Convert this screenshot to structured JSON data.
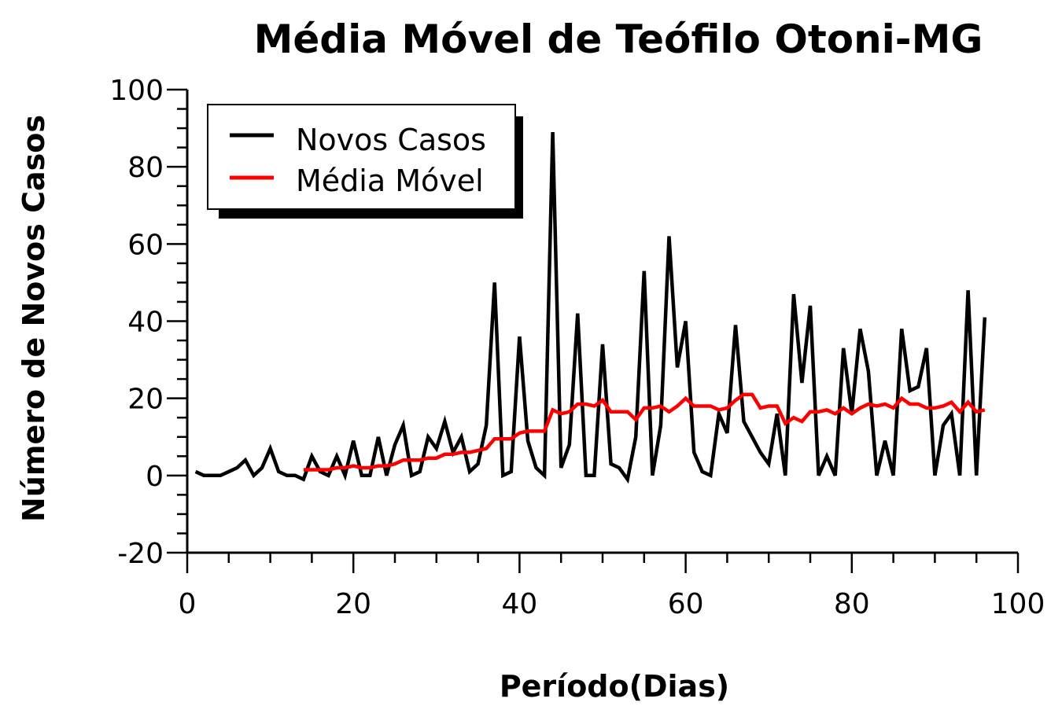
{
  "chart_data": {
    "type": "line",
    "title": "Média Móvel de Teófilo Otoni-MG",
    "xlabel": "Período(Dias)",
    "ylabel": "Número de Novos Casos",
    "xlim": [
      0,
      100
    ],
    "ylim": [
      -20,
      100
    ],
    "xticks": [
      0,
      20,
      40,
      60,
      80,
      100
    ],
    "yticks": [
      -20,
      0,
      20,
      40,
      60,
      80,
      100
    ],
    "x_minor_step": 5,
    "y_minor_step": 5,
    "grid": false,
    "legend_position": "top-left",
    "series": [
      {
        "name": "Novos Casos",
        "color": "#000000",
        "points": [
          [
            1,
            1
          ],
          [
            2,
            0
          ],
          [
            3,
            0
          ],
          [
            4,
            0
          ],
          [
            5,
            1
          ],
          [
            6,
            2
          ],
          [
            7,
            4
          ],
          [
            8,
            0
          ],
          [
            9,
            2
          ],
          [
            10,
            7
          ],
          [
            11,
            1
          ],
          [
            12,
            0
          ],
          [
            13,
            0
          ],
          [
            14,
            -1
          ],
          [
            15,
            5
          ],
          [
            16,
            1
          ],
          [
            17,
            0
          ],
          [
            18,
            5
          ],
          [
            19,
            0
          ],
          [
            20,
            9
          ],
          [
            21,
            0
          ],
          [
            22,
            0
          ],
          [
            23,
            10
          ],
          [
            24,
            0
          ],
          [
            25,
            8
          ],
          [
            26,
            13
          ],
          [
            27,
            0
          ],
          [
            28,
            1
          ],
          [
            29,
            10
          ],
          [
            30,
            7
          ],
          [
            31,
            14
          ],
          [
            32,
            6
          ],
          [
            33,
            10
          ],
          [
            34,
            1
          ],
          [
            35,
            3
          ],
          [
            36,
            13
          ],
          [
            37,
            50
          ],
          [
            38,
            0
          ],
          [
            39,
            1
          ],
          [
            40,
            36
          ],
          [
            41,
            9
          ],
          [
            42,
            2
          ],
          [
            43,
            0
          ],
          [
            44,
            89
          ],
          [
            45,
            2
          ],
          [
            46,
            8
          ],
          [
            47,
            42
          ],
          [
            48,
            0
          ],
          [
            49,
            0
          ],
          [
            50,
            34
          ],
          [
            51,
            3
          ],
          [
            52,
            2
          ],
          [
            53,
            -1
          ],
          [
            54,
            10
          ],
          [
            55,
            53
          ],
          [
            56,
            0
          ],
          [
            57,
            13
          ],
          [
            58,
            62
          ],
          [
            59,
            28
          ],
          [
            60,
            40
          ],
          [
            61,
            6
          ],
          [
            62,
            1
          ],
          [
            63,
            0
          ],
          [
            64,
            16
          ],
          [
            65,
            11
          ],
          [
            66,
            39
          ],
          [
            67,
            14
          ],
          [
            68,
            10
          ],
          [
            69,
            6
          ],
          [
            70,
            3
          ],
          [
            71,
            16
          ],
          [
            72,
            0
          ],
          [
            73,
            47
          ],
          [
            74,
            24
          ],
          [
            75,
            44
          ],
          [
            76,
            0
          ],
          [
            77,
            5
          ],
          [
            78,
            0
          ],
          [
            79,
            33
          ],
          [
            80,
            16
          ],
          [
            81,
            38
          ],
          [
            82,
            27
          ],
          [
            83,
            0
          ],
          [
            84,
            9
          ],
          [
            85,
            0
          ],
          [
            86,
            38
          ],
          [
            87,
            22
          ],
          [
            88,
            23
          ],
          [
            89,
            33
          ],
          [
            90,
            0
          ],
          [
            91,
            13
          ],
          [
            92,
            16
          ],
          [
            93,
            0
          ],
          [
            94,
            48
          ],
          [
            95,
            0
          ],
          [
            96,
            41
          ]
        ]
      },
      {
        "name": "Média Móvel",
        "color": "#ff0000",
        "points": [
          [
            14,
            1.5
          ],
          [
            15,
            1.5
          ],
          [
            16,
            1.5
          ],
          [
            17,
            1.5
          ],
          [
            18,
            2
          ],
          [
            19,
            2
          ],
          [
            20,
            2.5
          ],
          [
            21,
            2
          ],
          [
            22,
            2
          ],
          [
            23,
            2.5
          ],
          [
            24,
            2.5
          ],
          [
            25,
            3
          ],
          [
            26,
            4
          ],
          [
            27,
            4
          ],
          [
            28,
            4
          ],
          [
            29,
            4.5
          ],
          [
            30,
            4.5
          ],
          [
            31,
            5.5
          ],
          [
            32,
            5.5
          ],
          [
            33,
            6
          ],
          [
            34,
            6
          ],
          [
            35,
            6.5
          ],
          [
            36,
            7
          ],
          [
            37,
            9.5
          ],
          [
            38,
            9.5
          ],
          [
            39,
            9.5
          ],
          [
            40,
            11
          ],
          [
            41,
            11.5
          ],
          [
            42,
            11.5
          ],
          [
            43,
            11.5
          ],
          [
            44,
            17
          ],
          [
            45,
            16
          ],
          [
            46,
            16.5
          ],
          [
            47,
            18.5
          ],
          [
            48,
            18.5
          ],
          [
            49,
            18
          ],
          [
            50,
            19.5
          ],
          [
            51,
            16.5
          ],
          [
            52,
            16.5
          ],
          [
            53,
            16.5
          ],
          [
            54,
            14.5
          ],
          [
            55,
            17.5
          ],
          [
            56,
            17.5
          ],
          [
            57,
            18
          ],
          [
            58,
            16.5
          ],
          [
            59,
            18
          ],
          [
            60,
            20
          ],
          [
            61,
            18
          ],
          [
            62,
            18
          ],
          [
            63,
            18
          ],
          [
            64,
            17
          ],
          [
            65,
            17.5
          ],
          [
            66,
            19.5
          ],
          [
            67,
            21
          ],
          [
            68,
            21
          ],
          [
            69,
            17.5
          ],
          [
            70,
            18
          ],
          [
            71,
            18
          ],
          [
            72,
            13.5
          ],
          [
            73,
            15
          ],
          [
            74,
            14
          ],
          [
            75,
            16.5
          ],
          [
            76,
            16.5
          ],
          [
            77,
            17
          ],
          [
            78,
            16
          ],
          [
            79,
            17.5
          ],
          [
            80,
            16
          ],
          [
            81,
            17.5
          ],
          [
            82,
            18.5
          ],
          [
            83,
            18
          ],
          [
            84,
            18.5
          ],
          [
            85,
            17.5
          ],
          [
            86,
            20
          ],
          [
            87,
            18.5
          ],
          [
            88,
            18.5
          ],
          [
            89,
            17.5
          ],
          [
            90,
            17.5
          ],
          [
            91,
            18
          ],
          [
            92,
            19
          ],
          [
            93,
            16.5
          ],
          [
            94,
            19
          ],
          [
            95,
            16.5
          ],
          [
            96,
            17
          ]
        ]
      }
    ]
  }
}
